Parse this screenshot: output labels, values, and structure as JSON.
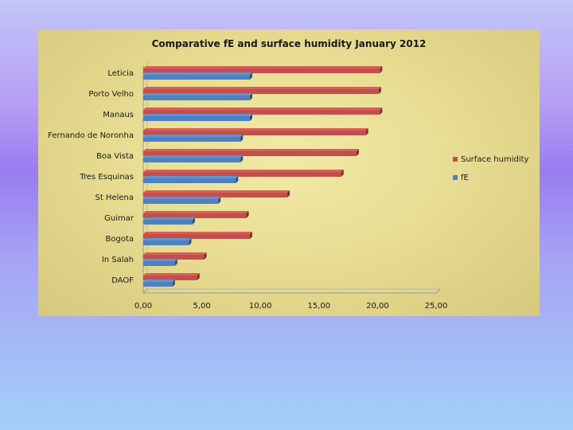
{
  "chart_data": {
    "type": "bar",
    "orientation": "horizontal",
    "title": "Comparative fE and surface humidity January 2012",
    "categories": [
      "Leticia",
      "Porto Velho",
      "Manaus",
      "Fernando de Noronha",
      "Boa Vista",
      "Tres Esquinas",
      "St Helena",
      "Guimar",
      "Bogota",
      "In Salah",
      "DAOF"
    ],
    "series": [
      {
        "name": "Surface humidity",
        "color": "#c0504d",
        "values": [
          20.2,
          20.1,
          20.2,
          19.0,
          18.2,
          16.9,
          12.3,
          8.8,
          9.1,
          5.2,
          4.6
        ]
      },
      {
        "name": "fE",
        "color": "#4f81bd",
        "values": [
          9.1,
          9.1,
          9.1,
          8.3,
          8.3,
          7.9,
          6.4,
          4.2,
          3.9,
          2.7,
          2.5
        ]
      }
    ],
    "xlim": [
      0,
      25
    ],
    "xticks": [
      "0,00",
      "5,00",
      "10,00",
      "15,00",
      "20,00",
      "25,00"
    ],
    "legend_position": "right",
    "grid": false
  }
}
